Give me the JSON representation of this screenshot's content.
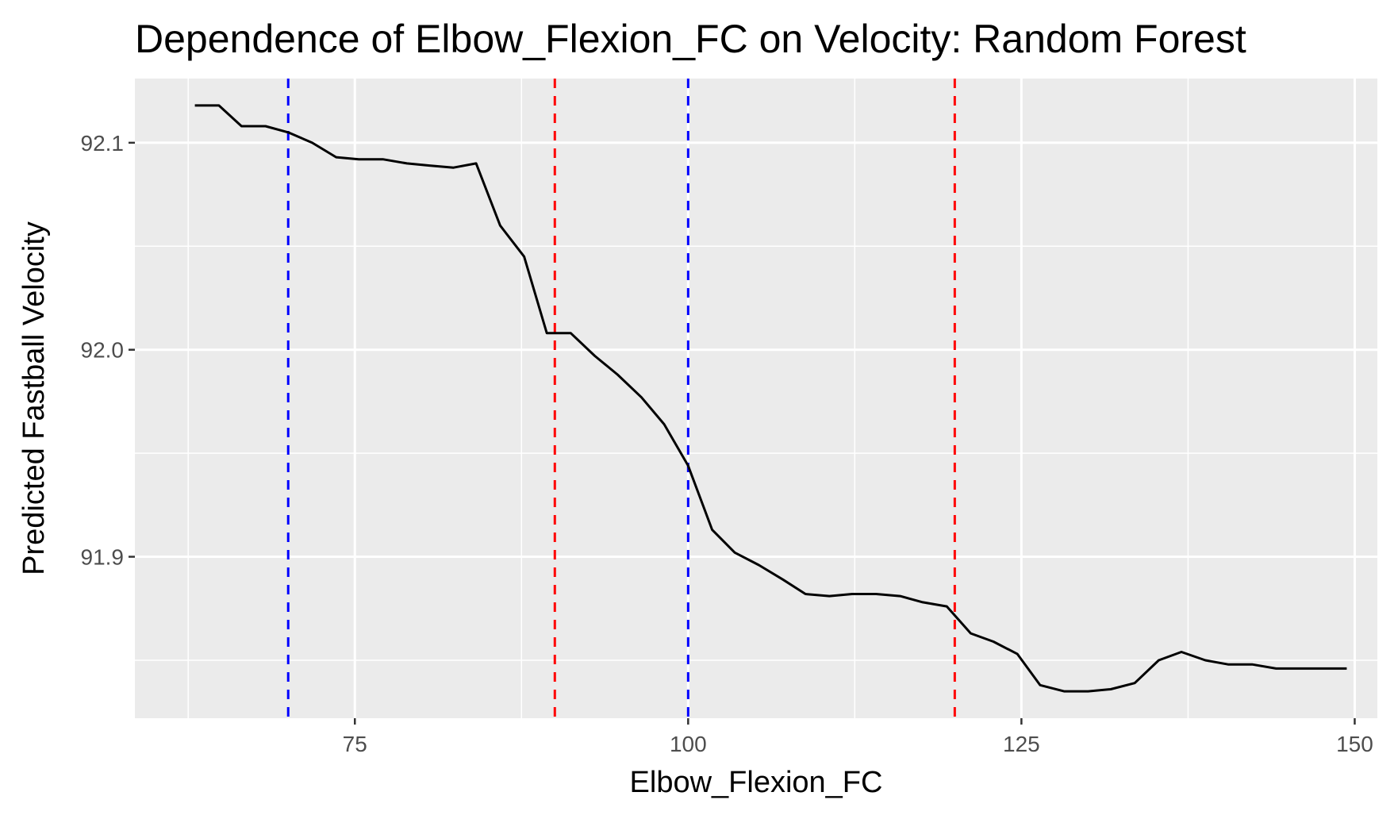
{
  "chart_data": {
    "type": "line",
    "title": "Dependence of Elbow_Flexion_FC on Velocity: Random Forest",
    "xlabel": "Elbow_Flexion_FC",
    "ylabel": "Predicted Fastball Velocity",
    "xlim": [
      58.5,
      151.7
    ],
    "ylim": [
      91.822,
      92.131
    ],
    "x_ticks": [
      75,
      100,
      125,
      150
    ],
    "x_tick_labels": [
      "75",
      "100",
      "125",
      "150"
    ],
    "y_ticks": [
      91.9,
      92.0,
      92.1
    ],
    "y_tick_labels": [
      "91.9",
      "92.0",
      "92.1"
    ],
    "grid": true,
    "background": "#ebebeb",
    "series": [
      {
        "color": "#000000",
        "x": [
          63.0,
          64.8,
          66.5,
          68.3,
          70.0,
          71.8,
          73.6,
          75.3,
          77.1,
          78.9,
          80.6,
          82.4,
          84.1,
          85.9,
          87.7,
          89.4,
          91.2,
          93.0,
          94.7,
          96.5,
          98.2,
          100.0,
          101.8,
          103.5,
          105.3,
          107.1,
          108.8,
          110.6,
          112.3,
          114.1,
          115.9,
          117.6,
          119.4,
          121.2,
          122.9,
          124.7,
          126.4,
          128.2,
          130.0,
          131.7,
          133.5,
          135.3,
          137.0,
          138.8,
          140.5,
          142.3,
          144.1,
          145.8,
          147.6,
          149.4
        ],
        "y": [
          92.118,
          92.118,
          92.108,
          92.108,
          92.105,
          92.1,
          92.093,
          92.092,
          92.092,
          92.09,
          92.089,
          92.088,
          92.09,
          92.06,
          92.045,
          92.008,
          92.008,
          91.997,
          91.988,
          91.977,
          91.964,
          91.944,
          91.913,
          91.902,
          91.896,
          91.889,
          91.882,
          91.881,
          91.882,
          91.882,
          91.881,
          91.878,
          91.876,
          91.863,
          91.859,
          91.853,
          91.838,
          91.835,
          91.835,
          91.836,
          91.839,
          91.85,
          91.854,
          91.85,
          91.848,
          91.848,
          91.846,
          91.846,
          91.846,
          91.846
        ]
      }
    ],
    "vlines": [
      {
        "x": 70.0,
        "color": "#0000ff",
        "linestyle": "dashed"
      },
      {
        "x": 90.0,
        "color": "#ff0000",
        "linestyle": "dashed"
      },
      {
        "x": 100.0,
        "color": "#0000ff",
        "linestyle": "dashed"
      },
      {
        "x": 120.0,
        "color": "#ff0000",
        "linestyle": "dashed"
      }
    ]
  }
}
